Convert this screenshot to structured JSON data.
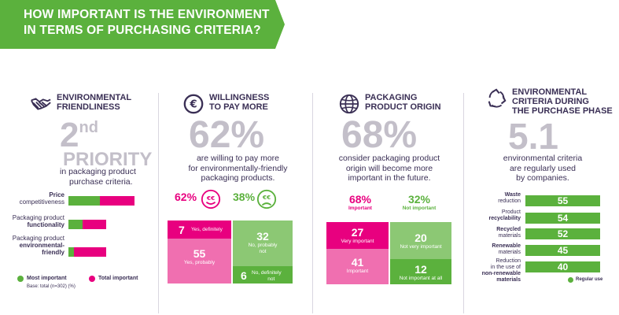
{
  "banner": {
    "line1": "HOW IMPORTANT IS THE ENVIRONMENT",
    "line2": "IN TERMS OF PURCHASING CRITERIA?"
  },
  "colors": {
    "green": "#5bb13d",
    "pink": "#e8007f",
    "light_green": "#8cc874",
    "light_pink": "#f06fb0",
    "grey_big": "#c3bfc9",
    "navy": "#3a2f55"
  },
  "section1": {
    "icon": "handshake-icon",
    "title1": "ENVIRONMENTAL",
    "title2": "FRIENDLINESS",
    "big1": "2",
    "big_sup": "nd",
    "big2": "PRIORITY",
    "sub1": "in packaging product",
    "sub2": "purchase criteria.",
    "rows": [
      {
        "l1": "Price",
        "l2": "competitiveness",
        "most": 0.35,
        "total": 0.82
      },
      {
        "l1": "Packaging product",
        "l2": "functionality",
        "most": 0.17,
        "total": 0.47
      },
      {
        "l1": "Packaging product",
        "l2": "environmental-",
        "l3": "friendly",
        "most": 0.07,
        "total": 0.47
      }
    ],
    "legend_most": "Most important",
    "legend_total": "Total important",
    "base": "Base: total (n=302)  (%)"
  },
  "section2": {
    "icon": "euro-icon",
    "title1": "WILLINGNESS",
    "title2": "TO PAY MORE",
    "big": "62%",
    "sub1": "are willing to pay more",
    "sub2": "for environmentally-friendly",
    "sub3": "packaging products.",
    "pct_yes": "62%",
    "pct_no": "38%",
    "smiley_happy": "€€",
    "smiley_sad": "€€",
    "yes_def_n": "7",
    "yes_def_t": "Yes, definitely",
    "yes_prob_n": "55",
    "yes_prob_t1": "Yes, probably",
    "no_prob_n": "32",
    "no_prob_t1": "No, probably",
    "no_prob_t2": "not",
    "no_def_n": "6",
    "no_def_t1": "No, definitely",
    "no_def_t2": "not"
  },
  "section3": {
    "icon": "globe-icon",
    "title1": "PACKAGING",
    "title2": "PRODUCT ORIGIN",
    "big": "68%",
    "sub1": "consider packaging product",
    "sub2": "origin will become more",
    "sub3": "important in the future.",
    "pct_imp": "68%",
    "pct_imp_label": "Important",
    "pct_not": "32%",
    "pct_not_label": "Not important",
    "very_n": "27",
    "very_t": "Very important",
    "imp_n": "41",
    "imp_t": "Important",
    "notvery_n": "20",
    "notvery_t": "Not very important",
    "notall_n": "12",
    "notall_t": "Not important at all"
  },
  "section4": {
    "icon": "recycle-icon",
    "title1": "ENVIRONMENTAL",
    "title2": "CRITERIA DURING",
    "title3": "THE PURCHASE PHASE",
    "big": "5.1",
    "sub1": "environmental criteria",
    "sub2": "are regularly used",
    "sub3": "by companies.",
    "rows": [
      {
        "b": "Waste",
        "t": "reduction",
        "v": "55"
      },
      {
        "t0": "Product",
        "b": "recyclability",
        "v": "54"
      },
      {
        "b": "Recycled",
        "t": "materials",
        "v": "52"
      },
      {
        "b": "Renewable",
        "t": "materials",
        "v": "45"
      },
      {
        "t0": "Reduction",
        "t1": "in the use of",
        "b": "non-renewable",
        "b2": "materials",
        "v": "40"
      }
    ],
    "legend": "Regular use"
  }
}
